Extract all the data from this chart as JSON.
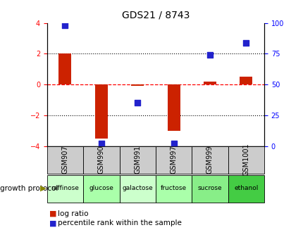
{
  "title": "GDS21 / 8743",
  "samples": [
    "GSM907",
    "GSM990",
    "GSM991",
    "GSM997",
    "GSM999",
    "GSM1001"
  ],
  "conditions": [
    "raffinose",
    "glucose",
    "galactose",
    "fructose",
    "sucrose",
    "ethanol"
  ],
  "log_ratios": [
    2.0,
    -3.5,
    -0.1,
    -3.0,
    0.2,
    0.5
  ],
  "percentile_ranks": [
    98,
    2,
    35,
    2,
    74,
    84
  ],
  "bar_color": "#cc2200",
  "dot_color": "#2222cc",
  "ylim_left": [
    -4,
    4
  ],
  "ylim_right": [
    0,
    100
  ],
  "yticks_left": [
    -4,
    -2,
    0,
    2,
    4
  ],
  "yticks_right": [
    0,
    25,
    50,
    75,
    100
  ],
  "condition_colors": [
    "#ccffcc",
    "#aaffaa",
    "#ccffcc",
    "#aaffaa",
    "#88ee88",
    "#44cc44"
  ],
  "sample_box_color": "#cccccc",
  "background_color": "#ffffff",
  "bar_width": 0.35,
  "dot_size": 30,
  "title_fontsize": 10,
  "axis_fontsize": 8,
  "tick_fontsize": 7,
  "cond_fontsize": 6.5,
  "legend_fontsize": 7.5
}
